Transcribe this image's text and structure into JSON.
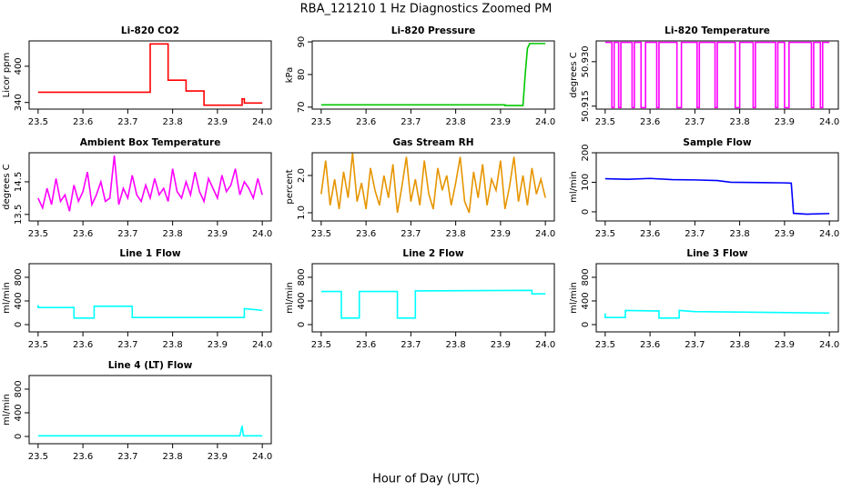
{
  "title": "RBA_121210  1 Hz Diagnostics Zoomed PM",
  "x_label": "Hour of Day (UTC)",
  "chart_data": [
    {
      "type": "line",
      "title": "Li-820 CO2",
      "y_label": "Licor ppm",
      "color": "#ff0000",
      "x": [
        23.5,
        23.75,
        23.75,
        23.79,
        23.79,
        23.83,
        23.83,
        23.87,
        23.87,
        23.955,
        23.955,
        23.96,
        23.96,
        24.0
      ],
      "values": [
        357,
        357,
        437,
        437,
        377,
        377,
        359,
        359,
        335.5,
        335.5,
        346,
        346,
        339,
        339
      ],
      "xlim": [
        23.48,
        24.02
      ],
      "ylim": [
        329,
        442
      ],
      "xticks": [
        23.5,
        23.6,
        23.7,
        23.8,
        23.9,
        {
          "value": 24,
          "label": "24.0"
        }
      ],
      "yticks": [
        340,
        400
      ]
    },
    {
      "type": "line",
      "title": "Li-820 Pressure",
      "y_label": "kPa",
      "color": "#00c800",
      "x": [
        23.5,
        23.91,
        23.91,
        23.95,
        23.955,
        23.96,
        23.965,
        24.0
      ],
      "values": [
        70.7,
        70.7,
        70.5,
        70.5,
        80,
        88,
        89.5,
        89.5
      ],
      "xlim": [
        23.48,
        24.02
      ],
      "ylim": [
        69.4,
        90.3
      ],
      "xticks": [
        23.5,
        23.6,
        23.7,
        23.8,
        23.9,
        {
          "value": 24,
          "label": "24.0"
        }
      ],
      "yticks": [
        70,
        80,
        90
      ]
    },
    {
      "type": "line",
      "title": "Li-820 Temperature",
      "y_label": "degrees C",
      "color": "#ff00ff",
      "x": [
        23.5,
        23.515,
        23.515,
        23.52,
        23.52,
        23.53,
        23.53,
        23.535,
        23.535,
        23.56,
        23.56,
        23.565,
        23.565,
        23.58,
        23.58,
        23.59,
        23.59,
        23.615,
        23.615,
        23.62,
        23.62,
        23.66,
        23.66,
        23.67,
        23.67,
        23.705,
        23.705,
        23.71,
        23.71,
        23.745,
        23.745,
        23.75,
        23.75,
        23.79,
        23.79,
        23.8,
        23.8,
        23.83,
        23.83,
        23.835,
        23.835,
        23.88,
        23.88,
        23.885,
        23.885,
        23.9,
        23.9,
        23.91,
        23.91,
        23.96,
        23.96,
        23.965,
        23.965,
        23.98,
        23.98,
        23.985,
        23.985,
        24.0
      ],
      "values": [
        50.9365,
        50.9365,
        50.9145,
        50.9145,
        50.9365,
        50.9365,
        50.9145,
        50.9145,
        50.9365,
        50.9365,
        50.9145,
        50.9145,
        50.9365,
        50.9365,
        50.9145,
        50.9145,
        50.9365,
        50.9365,
        50.9145,
        50.9145,
        50.9365,
        50.9365,
        50.9145,
        50.9145,
        50.9365,
        50.9365,
        50.9145,
        50.9145,
        50.9365,
        50.9365,
        50.9145,
        50.9145,
        50.9365,
        50.9365,
        50.9145,
        50.9145,
        50.9365,
        50.9365,
        50.9145,
        50.9145,
        50.9365,
        50.9365,
        50.9145,
        50.9145,
        50.9365,
        50.9365,
        50.9145,
        50.9145,
        50.9365,
        50.9365,
        50.9145,
        50.9145,
        50.9365,
        50.9365,
        50.9145,
        50.9145,
        50.9365,
        50.9365
      ],
      "xlim": [
        23.48,
        24.02
      ],
      "ylim": [
        50.914,
        50.937
      ],
      "xticks": [
        23.5,
        23.6,
        23.7,
        23.8,
        23.9,
        {
          "value": 24,
          "label": "24.0"
        }
      ],
      "yticks": [
        50.915,
        {
          "value": 50.93,
          "label": "50.930"
        }
      ]
    },
    {
      "type": "line",
      "title": "Ambient Box Temperature",
      "y_label": "degrees C",
      "color": "#ff00ff",
      "x": [
        23.5,
        23.51,
        23.52,
        23.53,
        23.54,
        23.55,
        23.56,
        23.57,
        23.58,
        23.59,
        23.6,
        23.61,
        23.62,
        23.63,
        23.64,
        23.65,
        23.66,
        23.67,
        23.68,
        23.69,
        23.7,
        23.71,
        23.72,
        23.73,
        23.74,
        23.75,
        23.76,
        23.77,
        23.78,
        23.79,
        23.8,
        23.81,
        23.82,
        23.83,
        23.84,
        23.85,
        23.86,
        23.87,
        23.88,
        23.89,
        23.9,
        23.91,
        23.92,
        23.93,
        23.94,
        23.95,
        23.96,
        23.97,
        23.98,
        23.99,
        24.0
      ],
      "values": [
        14.0,
        13.7,
        14.3,
        13.8,
        14.6,
        13.9,
        14.1,
        13.6,
        14.4,
        13.9,
        14.2,
        14.8,
        13.8,
        14.1,
        14.5,
        13.9,
        14.0,
        15.3,
        13.8,
        14.3,
        14.0,
        14.7,
        14.1,
        13.9,
        14.4,
        14.0,
        14.6,
        14.1,
        14.3,
        13.9,
        14.9,
        14.2,
        14.0,
        14.5,
        14.1,
        14.8,
        14.2,
        13.9,
        14.6,
        14.3,
        14.0,
        14.7,
        14.2,
        14.4,
        14.9,
        14.1,
        14.5,
        14.3,
        14.0,
        14.6,
        14.1
      ],
      "xlim": [
        23.48,
        24.02
      ],
      "ylim": [
        13.3,
        15.39
      ],
      "xticks": [
        23.5,
        23.6,
        23.7,
        23.8,
        23.9,
        {
          "value": 24,
          "label": "24.0"
        }
      ],
      "yticks": [
        13.5,
        14.5
      ]
    },
    {
      "type": "line",
      "title": "Gas Stream RH",
      "y_label": "percent",
      "color": "#e69500",
      "x": [
        23.5,
        23.51,
        23.52,
        23.53,
        23.54,
        23.55,
        23.56,
        23.57,
        23.58,
        23.59,
        23.6,
        23.61,
        23.62,
        23.63,
        23.64,
        23.65,
        23.66,
        23.67,
        23.68,
        23.69,
        23.7,
        23.71,
        23.72,
        23.73,
        23.74,
        23.75,
        23.76,
        23.77,
        23.78,
        23.79,
        23.8,
        23.81,
        23.82,
        23.83,
        23.84,
        23.85,
        23.86,
        23.87,
        23.88,
        23.89,
        23.9,
        23.91,
        23.92,
        23.93,
        23.94,
        23.95,
        23.96,
        23.97,
        23.98,
        23.99,
        24.0
      ],
      "values": [
        1.5,
        2.4,
        1.2,
        1.9,
        1.1,
        2.1,
        1.4,
        2.6,
        1.3,
        1.8,
        1.1,
        2.2,
        1.6,
        1.2,
        2.0,
        1.4,
        2.3,
        1.0,
        1.7,
        2.5,
        1.3,
        1.9,
        1.2,
        2.4,
        1.5,
        1.1,
        2.2,
        1.6,
        2.0,
        1.2,
        1.8,
        2.5,
        1.3,
        1.0,
        2.1,
        1.4,
        2.3,
        1.2,
        1.9,
        1.6,
        2.4,
        1.1,
        1.7,
        2.5,
        1.3,
        2.0,
        1.2,
        2.2,
        1.5,
        1.9,
        1.4
      ],
      "xlim": [
        23.48,
        24.02
      ],
      "ylim": [
        0.78,
        2.61
      ],
      "xticks": [
        23.5,
        23.6,
        23.7,
        23.8,
        23.9,
        {
          "value": 24,
          "label": "24.0"
        }
      ],
      "yticks": [
        {
          "value": 1,
          "label": "1.0"
        },
        {
          "value": 2,
          "label": "2.0"
        }
      ]
    },
    {
      "type": "line",
      "title": "Sample Flow",
      "y_label": "ml/min",
      "color": "#0000ff",
      "x": [
        23.5,
        23.55,
        23.6,
        23.65,
        23.7,
        23.75,
        23.78,
        23.85,
        23.9,
        23.915,
        23.92,
        23.95,
        24.0
      ],
      "values": [
        112,
        110,
        113,
        109,
        108,
        106,
        100,
        99,
        98,
        97,
        -5,
        -8,
        -6
      ],
      "xlim": [
        23.48,
        24.02
      ],
      "ylim": [
        -31,
        200
      ],
      "xticks": [
        23.5,
        23.6,
        23.7,
        23.8,
        23.9,
        {
          "value": 24,
          "label": "24.0"
        }
      ],
      "yticks": [
        0,
        100,
        200
      ]
    },
    {
      "type": "line",
      "title": "Line 1 Flow",
      "y_label": "ml/min",
      "color": "#00ffff",
      "x": [
        23.5,
        23.5,
        23.58,
        23.58,
        23.625,
        23.625,
        23.71,
        23.71,
        23.96,
        23.96,
        24.0
      ],
      "values": [
        330,
        290,
        290,
        110,
        110,
        310,
        310,
        120,
        120,
        270,
        240
      ],
      "xlim": [
        23.48,
        24.02
      ],
      "ylim": [
        -123,
        1030
      ],
      "xticks": [
        23.5,
        23.6,
        23.7,
        23.8,
        23.9,
        {
          "value": 24,
          "label": "24.0"
        }
      ],
      "yticks": [
        0,
        400,
        800
      ]
    },
    {
      "type": "line",
      "title": "Line 2 Flow",
      "y_label": "ml/min",
      "color": "#00ffff",
      "x": [
        23.5,
        23.545,
        23.545,
        23.585,
        23.585,
        23.67,
        23.67,
        23.71,
        23.71,
        23.97,
        23.97,
        24.0
      ],
      "values": [
        560,
        560,
        110,
        110,
        560,
        560,
        110,
        110,
        570,
        580,
        520,
        520
      ],
      "xlim": [
        23.48,
        24.02
      ],
      "ylim": [
        -123,
        1030
      ],
      "xticks": [
        23.5,
        23.6,
        23.7,
        23.8,
        23.9,
        {
          "value": 24,
          "label": "24.0"
        }
      ],
      "yticks": [
        0,
        400,
        800
      ]
    },
    {
      "type": "line",
      "title": "Line 3 Flow",
      "y_label": "ml/min",
      "color": "#00ffff",
      "x": [
        23.5,
        23.5,
        23.545,
        23.545,
        23.62,
        23.62,
        23.665,
        23.665,
        23.7,
        24.0
      ],
      "values": [
        190,
        120,
        120,
        240,
        230,
        110,
        110,
        240,
        220,
        195
      ],
      "xlim": [
        23.48,
        24.02
      ],
      "ylim": [
        -123,
        1030
      ],
      "xticks": [
        23.5,
        23.6,
        23.7,
        23.8,
        23.9,
        {
          "value": 24,
          "label": "24.0"
        }
      ],
      "yticks": [
        0,
        400,
        800
      ]
    },
    {
      "type": "line",
      "title": "Line 4 (LT) Flow",
      "y_label": "ml/min",
      "color": "#00ffff",
      "x": [
        23.5,
        23.95,
        23.955,
        23.958,
        23.96,
        24.0
      ],
      "values": [
        10,
        10,
        180,
        10,
        10,
        10
      ],
      "xlim": [
        23.48,
        24.02
      ],
      "ylim": [
        -123,
        1030
      ],
      "xticks": [
        23.5,
        23.6,
        23.7,
        23.8,
        23.9,
        {
          "value": 24,
          "label": "24.0"
        }
      ],
      "yticks": [
        0,
        400,
        800
      ]
    }
  ]
}
